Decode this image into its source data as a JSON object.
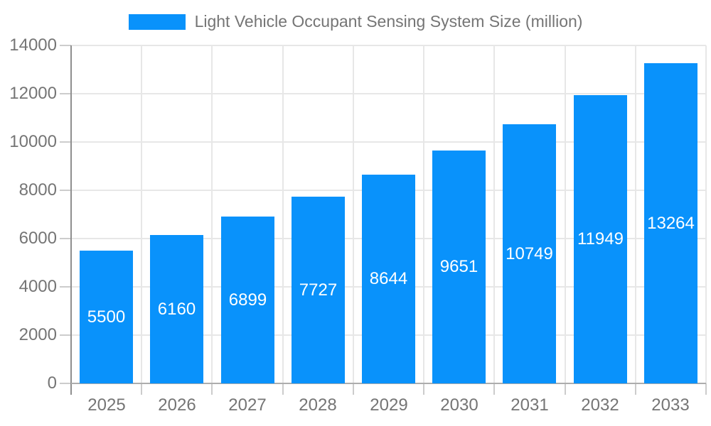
{
  "chart_data": {
    "type": "bar",
    "title": "Light Vehicle Occupant Sensing System Size (million)",
    "categories": [
      "2025",
      "2026",
      "2027",
      "2028",
      "2029",
      "2030",
      "2031",
      "2032",
      "2033"
    ],
    "values": [
      5500,
      6160,
      6899,
      7727,
      8644,
      9651,
      10749,
      11949,
      13264
    ],
    "xlabel": "",
    "ylabel": "",
    "ylim": [
      0,
      14000
    ],
    "yticks": [
      0,
      2000,
      4000,
      6000,
      8000,
      10000,
      12000,
      14000
    ],
    "grid": true,
    "legend_position": "top",
    "bar_color": "#0992fb",
    "value_label_color": "#ffffff",
    "axis_text_color": "#757575",
    "title_color": "#757575"
  }
}
